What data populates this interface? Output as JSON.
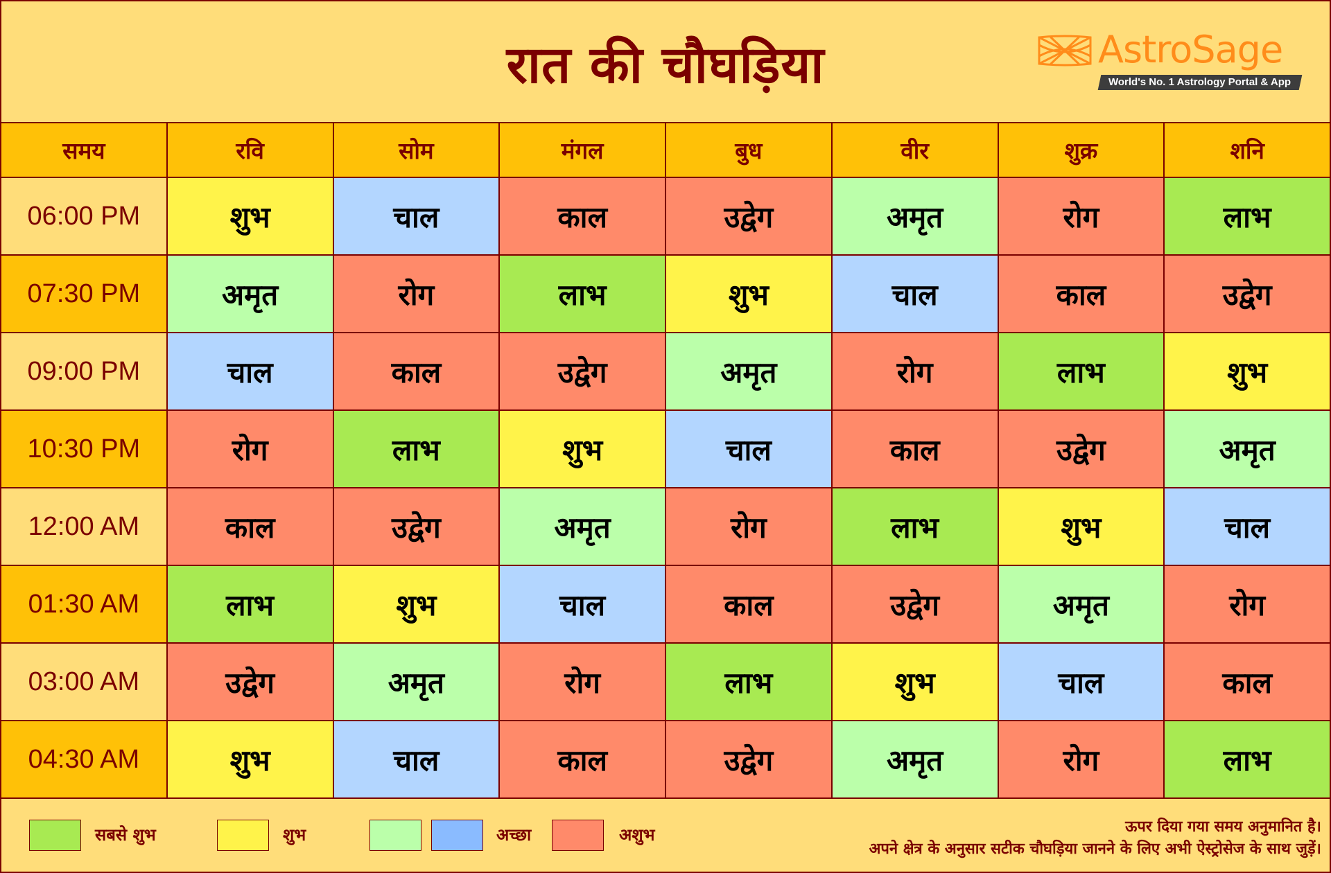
{
  "title": "रात की चौघड़िया",
  "logo": {
    "brand": "AstroSage",
    "tagline": "World's No. 1 Astrology Portal & App",
    "icon": "astrosage-net-icon",
    "color": "#FF8C1A"
  },
  "table": {
    "headers": [
      "समय",
      "रवि",
      "सोम",
      "मंगल",
      "बुध",
      "वीर",
      "शुक्र",
      "शनि"
    ],
    "rows": [
      {
        "time": "06:00 PM",
        "cells": [
          "शुभ",
          "चाल",
          "काल",
          "उद्वेग",
          "अमृत",
          "रोग",
          "लाभ"
        ]
      },
      {
        "time": "07:30 PM",
        "cells": [
          "अमृत",
          "रोग",
          "लाभ",
          "शुभ",
          "चाल",
          "काल",
          "उद्वेग"
        ]
      },
      {
        "time": "09:00 PM",
        "cells": [
          "चाल",
          "काल",
          "उद्वेग",
          "अमृत",
          "रोग",
          "लाभ",
          "शुभ"
        ]
      },
      {
        "time": "10:30 PM",
        "cells": [
          "रोग",
          "लाभ",
          "शुभ",
          "चाल",
          "काल",
          "उद्वेग",
          "अमृत"
        ]
      },
      {
        "time": "12:00 AM",
        "cells": [
          "काल",
          "उद्वेग",
          "अमृत",
          "रोग",
          "लाभ",
          "शुभ",
          "चाल"
        ]
      },
      {
        "time": "01:30 AM",
        "cells": [
          "लाभ",
          "शुभ",
          "चाल",
          "काल",
          "उद्वेग",
          "अमृत",
          "रोग"
        ]
      },
      {
        "time": "03:00 AM",
        "cells": [
          "उद्वेग",
          "अमृत",
          "रोग",
          "लाभ",
          "शुभ",
          "चाल",
          "काल"
        ]
      },
      {
        "time": "04:30 AM",
        "cells": [
          "शुभ",
          "चाल",
          "काल",
          "उद्वेग",
          "अमृत",
          "रोग",
          "लाभ"
        ]
      }
    ]
  },
  "colors": {
    "लाभ": "#A8EA52",
    "शुभ": "#FFF34A",
    "अमृत": "#BBFFAA",
    "चाल": "#B3D6FF",
    "रोग": "#FF8A6A",
    "काल": "#FF8A6A",
    "उद्वेग": "#FF8A6A",
    "header": "#FFC107",
    "background": "#FFDD7A",
    "border": "#7A0000"
  },
  "legend": [
    {
      "label": "सबसे शुभ",
      "colors": [
        "#A8EA52"
      ]
    },
    {
      "label": "शुभ",
      "colors": [
        "#FFF34A"
      ]
    },
    {
      "label": "अच्छा",
      "colors": [
        "#BBFFAA",
        "#8ABBFF"
      ]
    },
    {
      "label": "अशुभ",
      "colors": [
        "#FF8A6A"
      ]
    }
  ],
  "notes": [
    "ऊपर दिया गया समय अनुमानित है।",
    "अपने क्षेत्र के अनुसार सटीक चौघड़िया जानने के लिए अभी ऐस्ट्रोसेज के साथ जुड़ें।"
  ]
}
